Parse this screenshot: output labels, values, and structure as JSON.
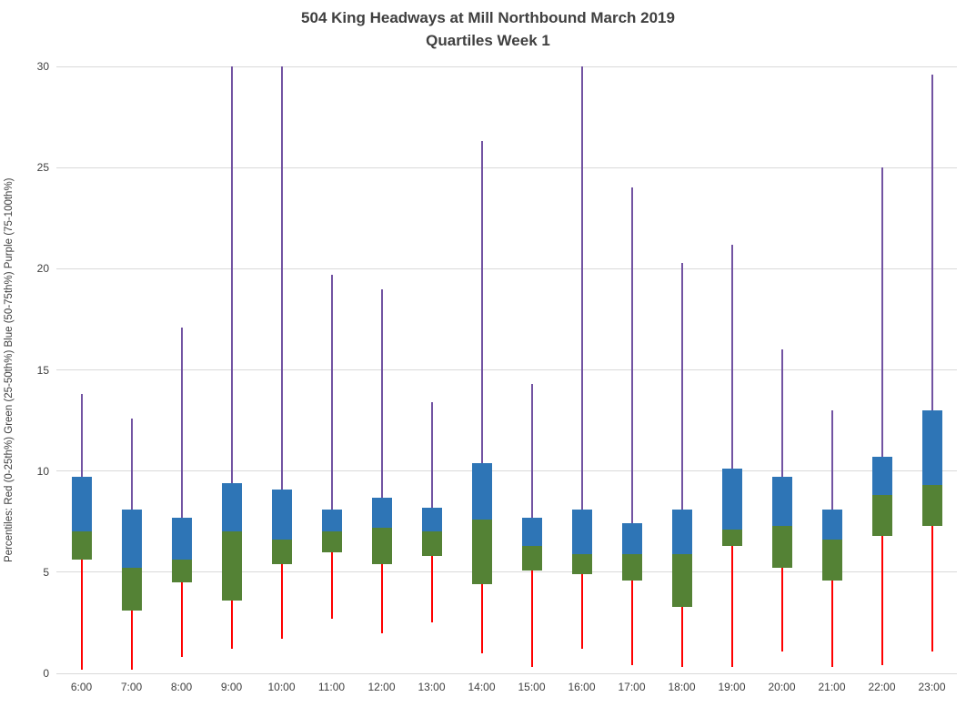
{
  "chart_data": {
    "type": "boxplot",
    "title": "504 King Headways at Mill Northbound March 2019",
    "subtitle": "Quartiles Week 1",
    "ylabel": "Percentiles:  Red (0-25th%)  Green (25-50th%)  Blue (50-75th%)  Purple (75-100th%)",
    "xlabel": "",
    "ylim": [
      0,
      30
    ],
    "yticks": [
      0,
      5,
      10,
      15,
      20,
      25,
      30
    ],
    "grid": "horizontal",
    "legend": "none",
    "colors": {
      "whisker_low": "#ff0000",
      "box_25_50": "#548235",
      "box_50_75": "#2e75b6",
      "whisker_high": "#7253a2",
      "gridline": "#d9d9d9",
      "text": "#404040"
    },
    "categories": [
      "6:00",
      "7:00",
      "8:00",
      "9:00",
      "10:00",
      "11:00",
      "12:00",
      "13:00",
      "14:00",
      "15:00",
      "16:00",
      "17:00",
      "18:00",
      "19:00",
      "20:00",
      "21:00",
      "22:00",
      "23:00"
    ],
    "series": [
      {
        "name": "min",
        "values": [
          0.2,
          0.2,
          0.8,
          1.2,
          1.7,
          2.7,
          2.0,
          2.5,
          1.0,
          0.3,
          1.2,
          0.4,
          0.3,
          0.3,
          1.1,
          0.3,
          0.4,
          1.1
        ]
      },
      {
        "name": "p25",
        "values": [
          5.6,
          3.1,
          4.5,
          3.6,
          5.4,
          6.0,
          5.4,
          5.8,
          4.4,
          5.1,
          4.9,
          4.6,
          3.3,
          6.3,
          5.2,
          4.6,
          6.8,
          7.3
        ]
      },
      {
        "name": "p50",
        "values": [
          7.0,
          5.2,
          5.6,
          7.0,
          6.6,
          7.0,
          7.2,
          7.0,
          7.6,
          6.3,
          5.9,
          5.9,
          5.9,
          7.1,
          7.3,
          6.6,
          8.8,
          9.3
        ]
      },
      {
        "name": "p75",
        "values": [
          9.7,
          8.1,
          7.7,
          9.4,
          9.1,
          8.1,
          8.7,
          8.2,
          10.4,
          7.7,
          8.1,
          7.4,
          8.1,
          10.1,
          9.7,
          8.1,
          10.7,
          13.0
        ]
      },
      {
        "name": "max",
        "values": [
          13.8,
          12.6,
          17.1,
          30.0,
          30.0,
          19.7,
          19.0,
          13.4,
          26.3,
          14.3,
          30.0,
          24.0,
          20.3,
          21.2,
          16.0,
          13.0,
          25.0,
          29.6
        ]
      }
    ],
    "note": "Upper whiskers at 9:00, 10:00 and 16:00 reach the top of the plot (30)."
  }
}
